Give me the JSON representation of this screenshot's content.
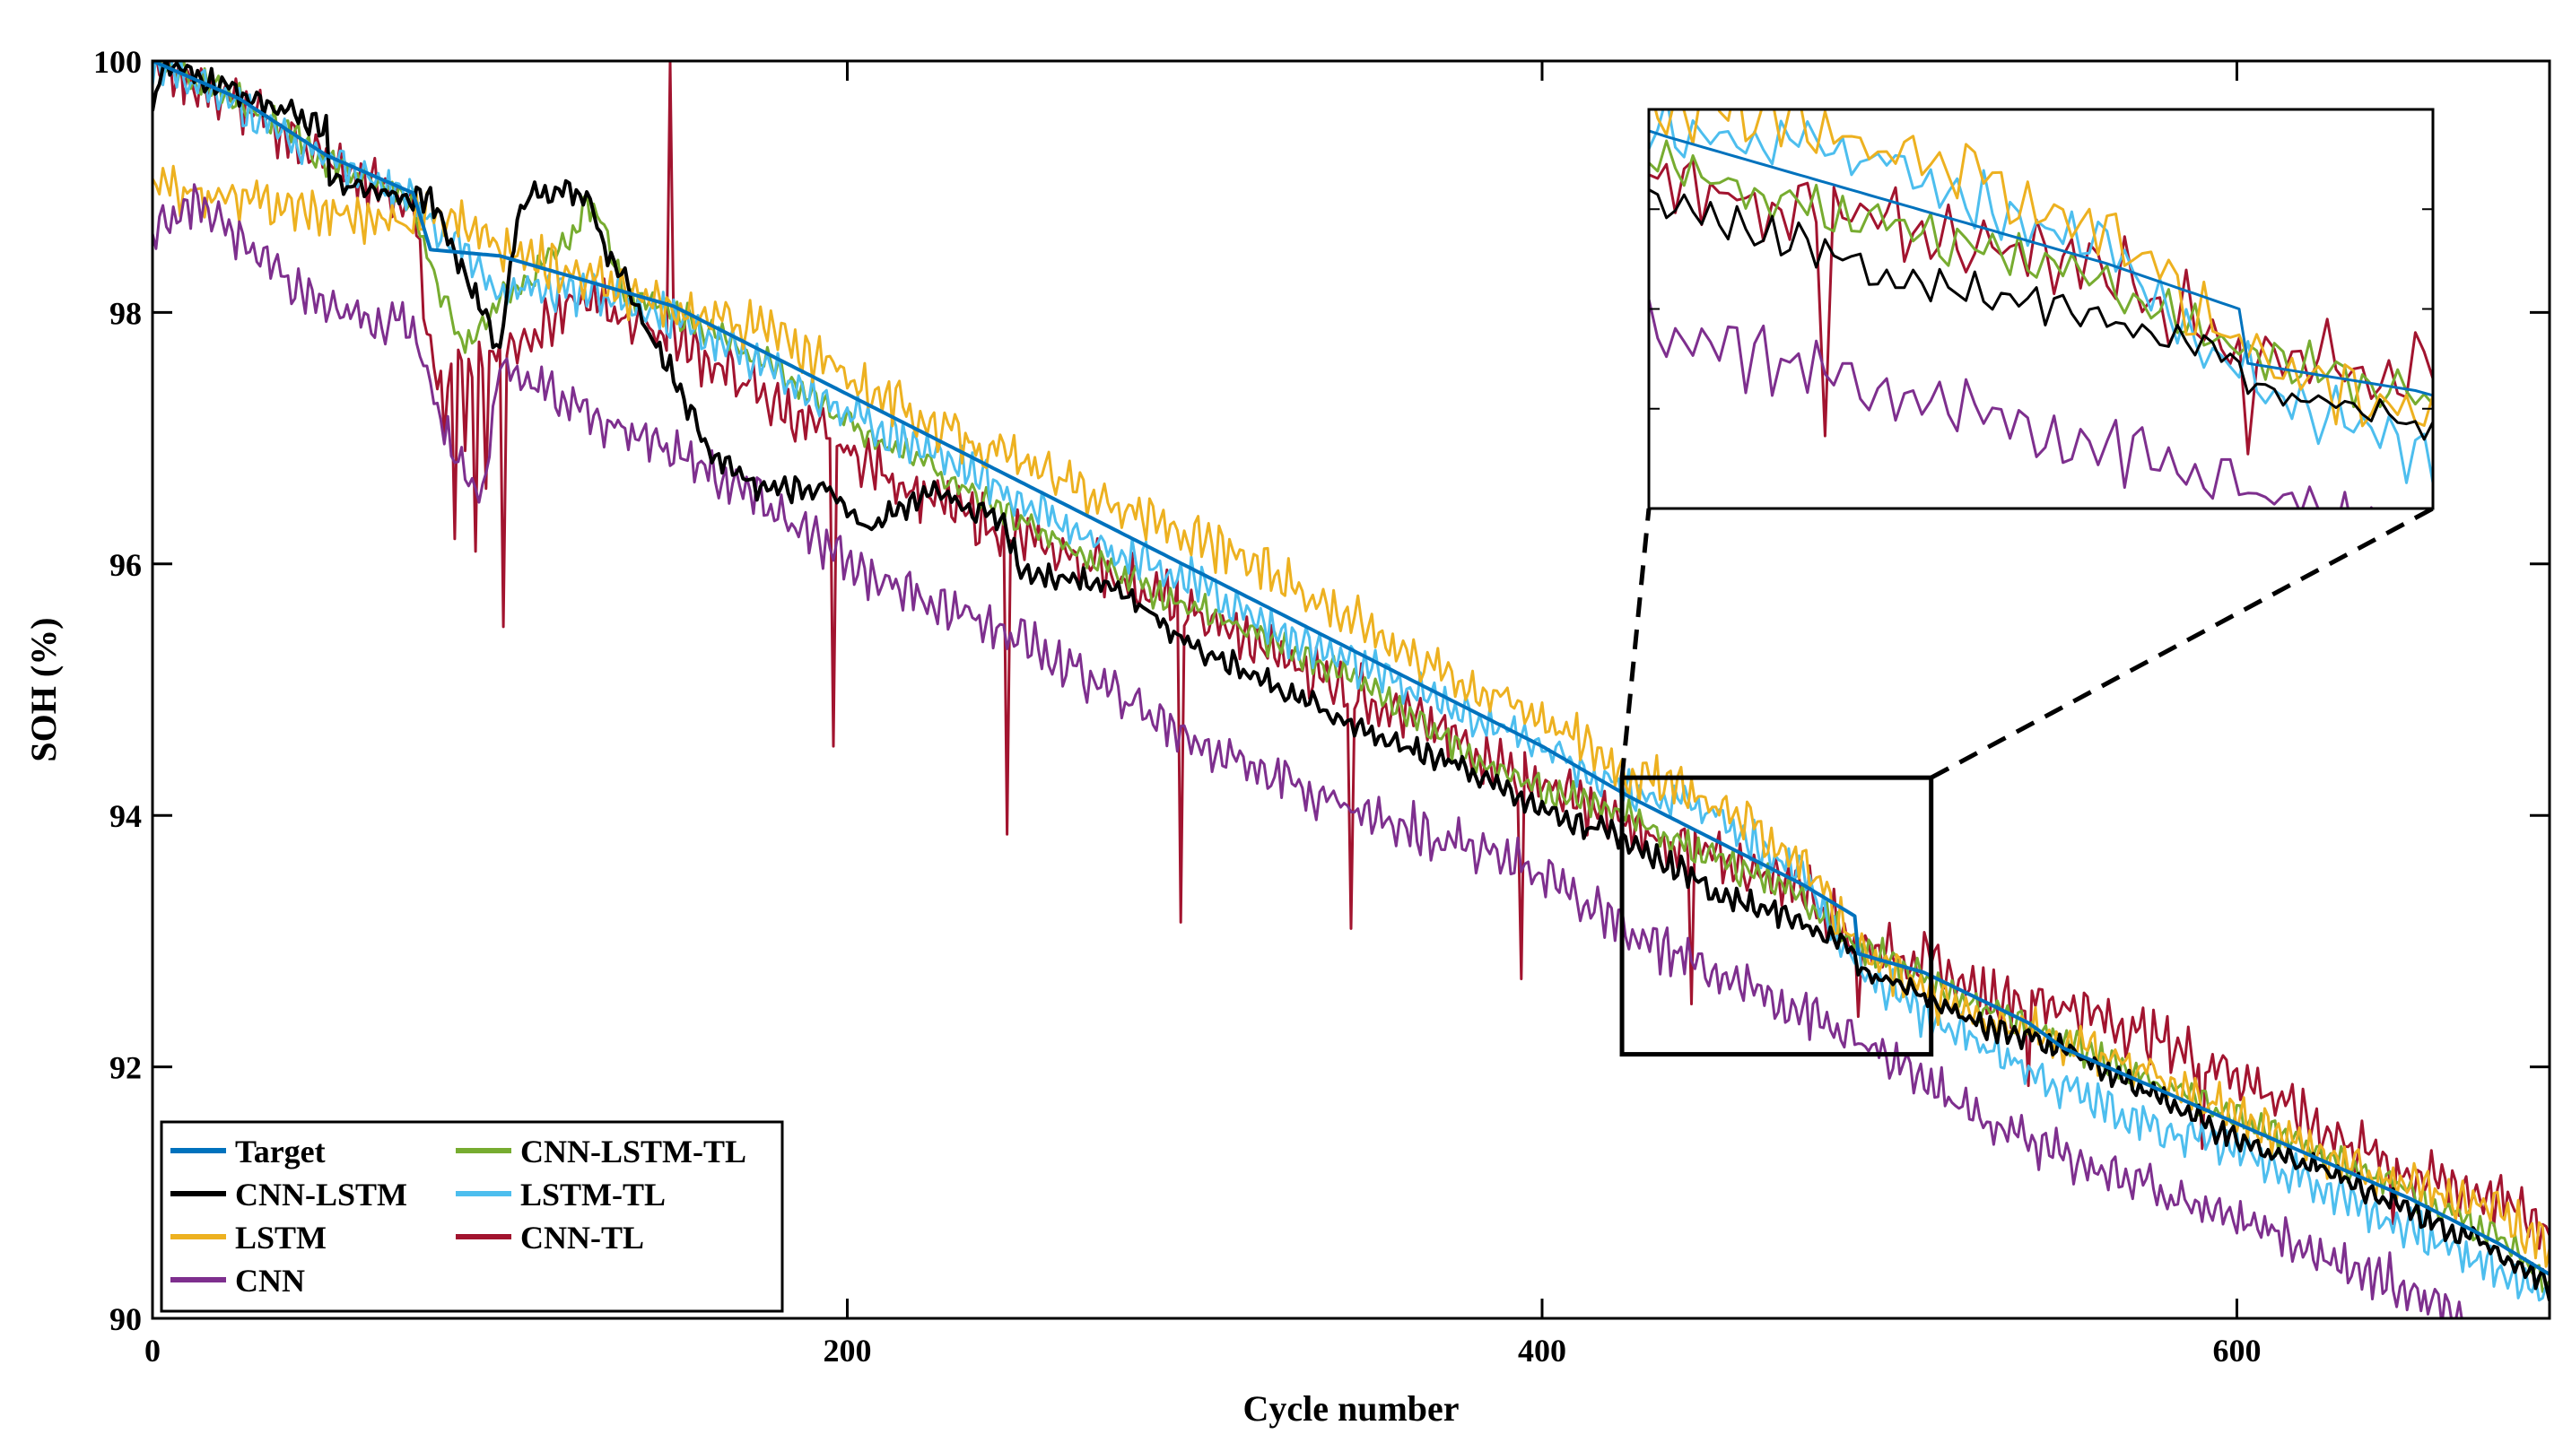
{
  "chart_data": {
    "type": "line",
    "title": "",
    "xlabel": "Cycle number",
    "ylabel": "SOH (%)",
    "xlim": [
      0,
      690
    ],
    "ylim": [
      90,
      100
    ],
    "xticks": [
      0,
      200,
      400,
      600
    ],
    "yticks": [
      90,
      92,
      94,
      96,
      98,
      100
    ],
    "xtick_labels": [
      "0",
      "200",
      "400",
      "600"
    ],
    "ytick_labels": [
      "90",
      "92",
      "94",
      "96",
      "98",
      "100"
    ],
    "legend_position": "bottom-left",
    "zoom_box": {
      "x_range": [
        423,
        512
      ],
      "y_range": [
        92.1,
        94.3
      ]
    },
    "series": [
      {
        "name": "Target",
        "color": "#0072BD",
        "x": [
          0,
          25,
          50,
          75,
          80,
          100,
          125,
          150,
          175,
          200,
          225,
          250,
          275,
          300,
          325,
          350,
          375,
          400,
          425,
          450,
          475,
          490,
          491,
          510,
          525,
          540,
          550,
          575,
          600,
          625,
          650,
          675,
          690
        ],
        "values": [
          100.0,
          99.7,
          99.25,
          98.95,
          98.5,
          98.45,
          98.25,
          98.05,
          97.7,
          97.35,
          97.0,
          96.65,
          96.3,
          95.95,
          95.6,
          95.25,
          94.9,
          94.55,
          94.15,
          93.8,
          93.45,
          93.2,
          92.9,
          92.75,
          92.55,
          92.35,
          92.15,
          91.85,
          91.55,
          91.25,
          90.95,
          90.6,
          90.35
        ],
        "wiggle": 0.0
      },
      {
        "name": "CNN-LSTM",
        "color": "#000000",
        "x": [
          0,
          2,
          5,
          25,
          50,
          51,
          80,
          100,
          105,
          110,
          125,
          130,
          135,
          140,
          150,
          160,
          175,
          195,
          205,
          225,
          245,
          250,
          275,
          300,
          325,
          350,
          375,
          400,
          425,
          450,
          475,
          490,
          491,
          510,
          525,
          550,
          575,
          600,
          625,
          650,
          675,
          690
        ],
        "values": [
          99.6,
          99.9,
          99.95,
          99.75,
          99.45,
          99.05,
          98.9,
          97.7,
          98.8,
          98.95,
          98.95,
          98.5,
          98.3,
          98.0,
          97.5,
          96.9,
          96.6,
          96.6,
          96.3,
          96.55,
          96.35,
          95.95,
          95.85,
          95.35,
          95.0,
          94.65,
          94.4,
          94.05,
          93.8,
          93.4,
          93.15,
          92.9,
          92.8,
          92.55,
          92.35,
          92.15,
          91.8,
          91.4,
          91.2,
          90.85,
          90.55,
          90.25
        ],
        "wiggle": 0.12
      },
      {
        "name": "LSTM",
        "color": "#EDB120",
        "x": [
          0,
          25,
          50,
          75,
          80,
          100,
          125,
          150,
          175,
          200,
          225,
          250,
          275,
          300,
          325,
          350,
          375,
          400,
          425,
          450,
          475,
          490,
          510,
          525,
          550,
          575,
          600,
          625,
          650,
          675,
          690
        ],
        "values": [
          99.0,
          98.9,
          98.8,
          98.7,
          98.9,
          98.5,
          98.3,
          98.0,
          97.9,
          97.5,
          97.1,
          96.8,
          96.5,
          96.2,
          95.9,
          95.5,
          95.1,
          94.8,
          94.35,
          94.1,
          93.65,
          92.95,
          92.6,
          92.4,
          92.2,
          91.95,
          91.6,
          91.3,
          91.05,
          90.85,
          90.6
        ],
        "wiggle": 0.22
      },
      {
        "name": "CNN",
        "color": "#7E2F8E",
        "x": [
          0,
          10,
          25,
          40,
          48,
          50,
          75,
          85,
          95,
          100,
          125,
          150,
          175,
          200,
          225,
          250,
          275,
          300,
          325,
          350,
          375,
          400,
          425,
          450,
          475,
          490,
          510,
          525,
          550,
          575,
          600,
          625,
          650,
          666
        ],
        "values": [
          98.6,
          98.9,
          98.6,
          98.2,
          98.1,
          98.0,
          97.9,
          97.0,
          96.5,
          97.6,
          97.2,
          96.9,
          96.5,
          96.0,
          95.7,
          95.4,
          95.0,
          94.6,
          94.3,
          94.0,
          93.8,
          93.55,
          93.05,
          92.75,
          92.45,
          92.2,
          91.9,
          91.6,
          91.3,
          91.05,
          90.8,
          90.5,
          90.25,
          90.0
        ],
        "wiggle": 0.22
      },
      {
        "name": "CNN-LSTM-TL",
        "color": "#77AC30",
        "x": [
          0,
          25,
          50,
          75,
          80,
          90,
          100,
          110,
          120,
          125,
          130,
          135,
          150,
          175,
          200,
          225,
          250,
          275,
          300,
          325,
          350,
          375,
          400,
          425,
          450,
          475,
          490,
          510,
          525,
          550,
          575,
          600,
          625,
          650,
          675,
          690
        ],
        "values": [
          100.0,
          99.7,
          99.2,
          98.9,
          98.4,
          97.7,
          98.1,
          98.3,
          98.6,
          98.85,
          98.7,
          98.2,
          98.0,
          97.65,
          97.1,
          96.75,
          96.35,
          95.95,
          95.65,
          95.35,
          95.05,
          94.55,
          94.2,
          94.0,
          93.65,
          93.35,
          93.0,
          92.7,
          92.5,
          92.2,
          91.9,
          91.6,
          91.3,
          91.0,
          90.65,
          90.3
        ],
        "wiggle": 0.15
      },
      {
        "name": "LSTM-TL",
        "color": "#4DBEEE",
        "x": [
          0,
          25,
          50,
          75,
          80,
          100,
          125,
          150,
          175,
          200,
          225,
          250,
          275,
          300,
          325,
          350,
          375,
          400,
          425,
          450,
          475,
          490,
          510,
          525,
          550,
          575,
          600,
          625,
          650,
          675,
          690
        ],
        "values": [
          100.0,
          99.65,
          99.2,
          98.9,
          98.7,
          98.2,
          98.15,
          97.95,
          97.6,
          97.2,
          96.9,
          96.5,
          96.15,
          95.85,
          95.45,
          95.15,
          94.85,
          94.55,
          94.2,
          94.0,
          93.5,
          92.85,
          92.4,
          92.2,
          91.85,
          91.55,
          91.35,
          91.05,
          90.7,
          90.4,
          90.15
        ],
        "wiggle": 0.2
      },
      {
        "name": "CNN-TL",
        "color": "#A2142F",
        "x": [
          0,
          25,
          50,
          75,
          80,
          100,
          125,
          150,
          175,
          200,
          225,
          250,
          275,
          300,
          325,
          350,
          375,
          400,
          425,
          450,
          475,
          490,
          510,
          525,
          550,
          575,
          600,
          625,
          650,
          675,
          690
        ],
        "values": [
          100.0,
          99.65,
          99.2,
          98.85,
          97.6,
          97.7,
          98.1,
          97.8,
          97.35,
          96.9,
          96.5,
          96.2,
          95.95,
          95.6,
          95.25,
          94.95,
          94.6,
          94.25,
          93.9,
          93.65,
          93.45,
          93.0,
          92.85,
          92.6,
          92.5,
          92.25,
          91.95,
          91.5,
          91.15,
          90.95,
          90.7
        ],
        "wiggle": 0.25,
        "spikes": [
          {
            "x": 84,
            "value": 97.0
          },
          {
            "x": 87,
            "value": 96.2
          },
          {
            "x": 90,
            "value": 96.9
          },
          {
            "x": 93,
            "value": 96.1
          },
          {
            "x": 96,
            "value": 96.6
          },
          {
            "x": 101,
            "value": 95.5
          },
          {
            "x": 149,
            "value": 100.0
          },
          {
            "x": 196,
            "value": 94.55
          },
          {
            "x": 246,
            "value": 93.85
          },
          {
            "x": 296,
            "value": 93.15
          },
          {
            "x": 345,
            "value": 93.1
          },
          {
            "x": 394,
            "value": 92.7
          },
          {
            "x": 443,
            "value": 92.5
          },
          {
            "x": 491,
            "value": 92.4
          },
          {
            "x": 540,
            "value": 91.85
          },
          {
            "x": 590,
            "value": 91.35
          },
          {
            "x": 645,
            "value": 90.75
          }
        ]
      }
    ]
  }
}
